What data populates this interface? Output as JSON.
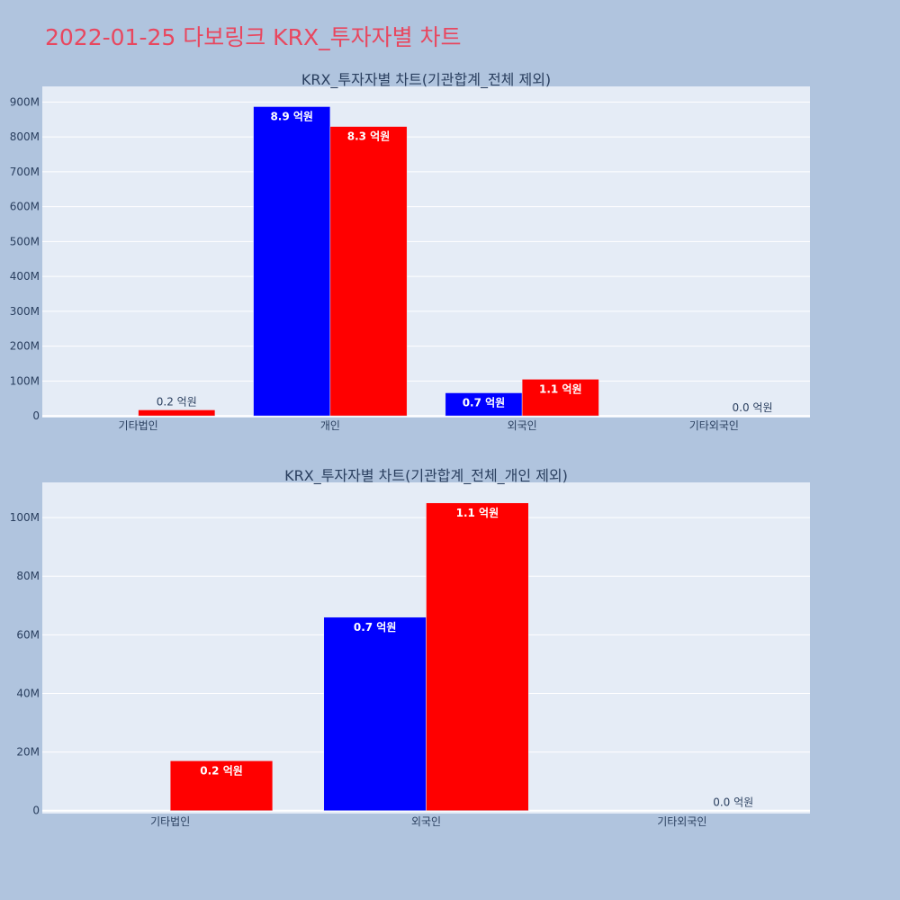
{
  "page": {
    "title": "2022-01-25 다보링크 KRX_투자자별 차트",
    "background": "#b0c4de",
    "title_color": "#e8475f",
    "plot_background": "#e5ecf6"
  },
  "chart_data": [
    {
      "type": "bar",
      "title": "KRX_투자자별 차트(기관합계_전체 제외)",
      "xlabel": "",
      "ylabel": "",
      "categories": [
        "기타법인",
        "개인",
        "외국인",
        "기타외국인"
      ],
      "series": [
        {
          "color": "#0000ff",
          "values": [
            0,
            887000000,
            66000000,
            0
          ],
          "labels": [
            "",
            "8.9 억원",
            "0.7 억원",
            ""
          ]
        },
        {
          "color": "#ff0000",
          "values": [
            17000000,
            830000000,
            105000000,
            0
          ],
          "labels": [
            "0.2 억원",
            "8.3 억원",
            "1.1 억원",
            "0.0 억원"
          ]
        }
      ],
      "yticks": [
        0,
        100000000,
        200000000,
        300000000,
        400000000,
        500000000,
        600000000,
        700000000,
        800000000,
        900000000
      ],
      "ytick_labels": [
        "0",
        "100M",
        "200M",
        "300M",
        "400M",
        "500M",
        "600M",
        "700M",
        "800M",
        "900M"
      ],
      "ylim": [
        -5000000,
        945000000
      ],
      "grid": true
    },
    {
      "type": "bar",
      "title": "KRX_투자자별 차트(기관합계_전체_개인 제외)",
      "xlabel": "",
      "ylabel": "",
      "categories": [
        "기타법인",
        "외국인",
        "기타외국인"
      ],
      "series": [
        {
          "color": "#0000ff",
          "values": [
            0,
            66000000,
            0
          ],
          "labels": [
            "",
            "0.7 억원",
            ""
          ]
        },
        {
          "color": "#ff0000",
          "values": [
            17000000,
            105000000,
            0
          ],
          "labels": [
            "0.2 억원",
            "1.1 억원",
            "0.0 억원"
          ]
        }
      ],
      "yticks": [
        0,
        20000000,
        40000000,
        60000000,
        80000000,
        100000000
      ],
      "ytick_labels": [
        "0",
        "20M",
        "40M",
        "60M",
        "80M",
        "100M"
      ],
      "ylim": [
        -1000000,
        112000000
      ],
      "grid": true
    }
  ]
}
